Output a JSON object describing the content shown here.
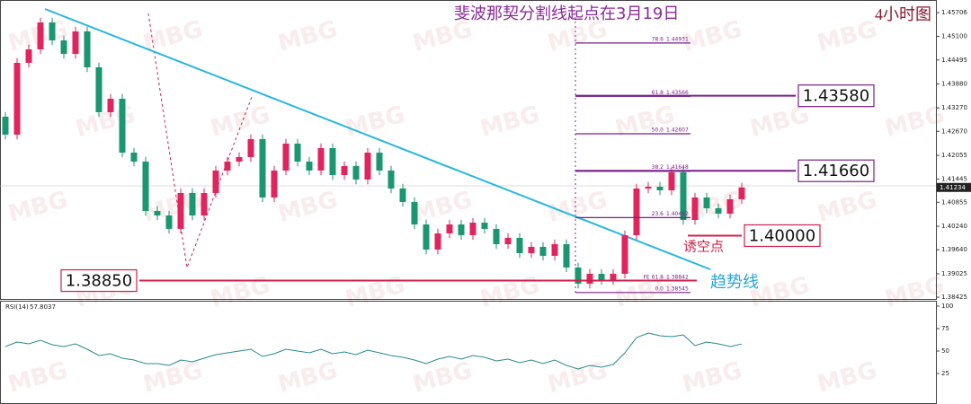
{
  "chart_data": [
    {
      "type": "candlestick",
      "title": "斐波那契分割线起点在3月19日",
      "timeframe": "4小时图",
      "watermark": "MBG",
      "ylim": [
        1.3838,
        1.4603
      ],
      "yticks": [
        1.45706,
        {
          "value": 1.451,
          "label": "1.45100"
        },
        1.44495,
        {
          "value": 1.4388,
          "label": "1.43880"
        },
        {
          "value": 1.4327,
          "label": "1.43270"
        },
        {
          "value": 1.4267,
          "label": "1.42670"
        },
        1.42055,
        1.41445,
        1.40855,
        {
          "value": 1.4024,
          "label": "1.40240"
        },
        {
          "value": 1.3964,
          "label": "1.39640"
        },
        1.39025,
        1.38425
      ],
      "up_color": "#e0245e",
      "down_color": "#1a9670",
      "open": [
        1.43044,
        1.42584,
        1.44422,
        1.44767,
        1.45456,
        1.44996,
        1.44652,
        1.45226,
        1.44307,
        1.43159,
        1.43503,
        1.42125,
        1.41895,
        1.40632,
        1.40517,
        1.40173,
        1.41091,
        1.40517,
        1.41091,
        1.41666,
        1.41895,
        1.4201,
        1.4247,
        1.40977,
        1.41666,
        1.42355,
        1.41895,
        1.41666,
        1.4224,
        1.41551,
        1.41781,
        1.41436,
        1.42125,
        1.41666,
        1.41206,
        1.40862,
        1.40287,
        1.39644,
        1.40058,
        1.40287,
        1.40012,
        1.40333,
        1.40173,
        1.39782,
        1.39943,
        1.39552,
        1.39713,
        1.39484,
        1.39782,
        1.39185,
        1.38771,
        1.39024,
        1.38863,
        1.39024,
        1.40012,
        1.41206,
        1.41252,
        1.4116,
        1.4162,
        1.40402,
        1.40977,
        1.40701,
        1.40563,
        1.40931
      ],
      "high": [
        1.43164,
        1.44542,
        1.44887,
        1.45576,
        1.45576,
        1.45116,
        1.45346,
        1.45346,
        1.44427,
        1.43623,
        1.43623,
        1.42245,
        1.42015,
        1.40752,
        1.40637,
        1.41211,
        1.41211,
        1.41211,
        1.41786,
        1.42015,
        1.4213,
        1.4259,
        1.4259,
        1.41786,
        1.42475,
        1.42475,
        1.42015,
        1.4236,
        1.4236,
        1.41901,
        1.41901,
        1.42245,
        1.42245,
        1.41786,
        1.41326,
        1.40982,
        1.40407,
        1.40178,
        1.40407,
        1.40407,
        1.40453,
        1.40453,
        1.40293,
        1.40063,
        1.40063,
        1.39833,
        1.39833,
        1.39902,
        1.39902,
        1.39305,
        1.39144,
        1.39144,
        1.39144,
        1.40132,
        1.41326,
        1.41372,
        1.41372,
        1.4174,
        1.4174,
        1.41097,
        1.41097,
        1.40821,
        1.41051,
        1.41354
      ],
      "low": [
        1.42464,
        1.42464,
        1.44302,
        1.44647,
        1.44876,
        1.44532,
        1.44532,
        1.44187,
        1.43039,
        1.43039,
        1.42005,
        1.41775,
        1.40512,
        1.40397,
        1.40053,
        1.40053,
        1.40397,
        1.40397,
        1.40971,
        1.41546,
        1.41775,
        1.4189,
        1.40857,
        1.40857,
        1.41546,
        1.41775,
        1.41546,
        1.41546,
        1.41431,
        1.41431,
        1.41316,
        1.41316,
        1.41546,
        1.41086,
        1.40742,
        1.40167,
        1.39524,
        1.39524,
        1.39938,
        1.39892,
        1.39892,
        1.40053,
        1.39662,
        1.39662,
        1.39432,
        1.39432,
        1.39364,
        1.39364,
        1.39065,
        1.38651,
        1.38651,
        1.38743,
        1.38743,
        1.38904,
        1.39892,
        1.41086,
        1.4104,
        1.4104,
        1.40282,
        1.40282,
        1.40581,
        1.40443,
        1.40443,
        1.40811
      ],
      "close": [
        1.42584,
        1.44422,
        1.44767,
        1.45456,
        1.44996,
        1.44652,
        1.45226,
        1.44307,
        1.43159,
        1.43503,
        1.42125,
        1.41895,
        1.40632,
        1.40517,
        1.40173,
        1.41091,
        1.40517,
        1.41091,
        1.41666,
        1.41895,
        1.4201,
        1.4247,
        1.40977,
        1.41666,
        1.42355,
        1.41895,
        1.41666,
        1.4224,
        1.41551,
        1.41781,
        1.41436,
        1.42125,
        1.41666,
        1.41206,
        1.40862,
        1.40287,
        1.39644,
        1.40058,
        1.40287,
        1.40012,
        1.40333,
        1.40173,
        1.39782,
        1.39943,
        1.39552,
        1.39713,
        1.39484,
        1.39782,
        1.39185,
        1.38771,
        1.39024,
        1.38863,
        1.39024,
        1.40012,
        1.41206,
        1.41252,
        1.4116,
        1.4162,
        1.40402,
        1.40977,
        1.40701,
        1.40563,
        1.40931,
        1.41234
      ],
      "fib_color": "#7a1f8a",
      "fib_levels": [
        {
          "level": "78.6",
          "price": 1.44931
        },
        {
          "level": "61.8",
          "price": 1.43566
        },
        {
          "level": "50.0",
          "price": 1.42607
        },
        {
          "level": "38.2",
          "price": 1.41648
        },
        {
          "level": "23.6",
          "price": 1.40462
        },
        {
          "level": "FE 61.8",
          "price": 1.38842
        },
        {
          "level": "0.0",
          "price": 1.38545
        }
      ],
      "key_levels": [
        {
          "value": 1.4358,
          "label": "1.43580"
        },
        {
          "value": 1.4166,
          "label": "1.41660"
        },
        {
          "value": 1.4,
          "label": "1.40000"
        },
        {
          "value": 1.3885,
          "label": "1.38850"
        }
      ],
      "trend_label": "趋势线",
      "bear_trap_label": "诱空点"
    },
    {
      "type": "line",
      "title": "RSI(14)",
      "color": "#2a8a8a",
      "ylim": [
        0,
        100
      ],
      "yticks": [
        100,
        75,
        50,
        25
      ],
      "values": [
        55,
        60,
        58,
        62,
        57,
        55,
        58,
        52,
        45,
        47,
        42,
        40,
        36,
        36,
        34,
        40,
        38,
        42,
        46,
        48,
        50,
        52,
        44,
        47,
        52,
        50,
        48,
        52,
        47,
        49,
        46,
        51,
        48,
        45,
        43,
        40,
        36,
        41,
        44,
        41,
        45,
        43,
        39,
        41,
        37,
        40,
        36,
        40,
        34,
        30,
        34,
        32,
        35,
        48,
        65,
        70,
        67,
        66,
        68,
        56,
        60,
        58,
        55,
        57.8037
      ]
    }
  ]
}
